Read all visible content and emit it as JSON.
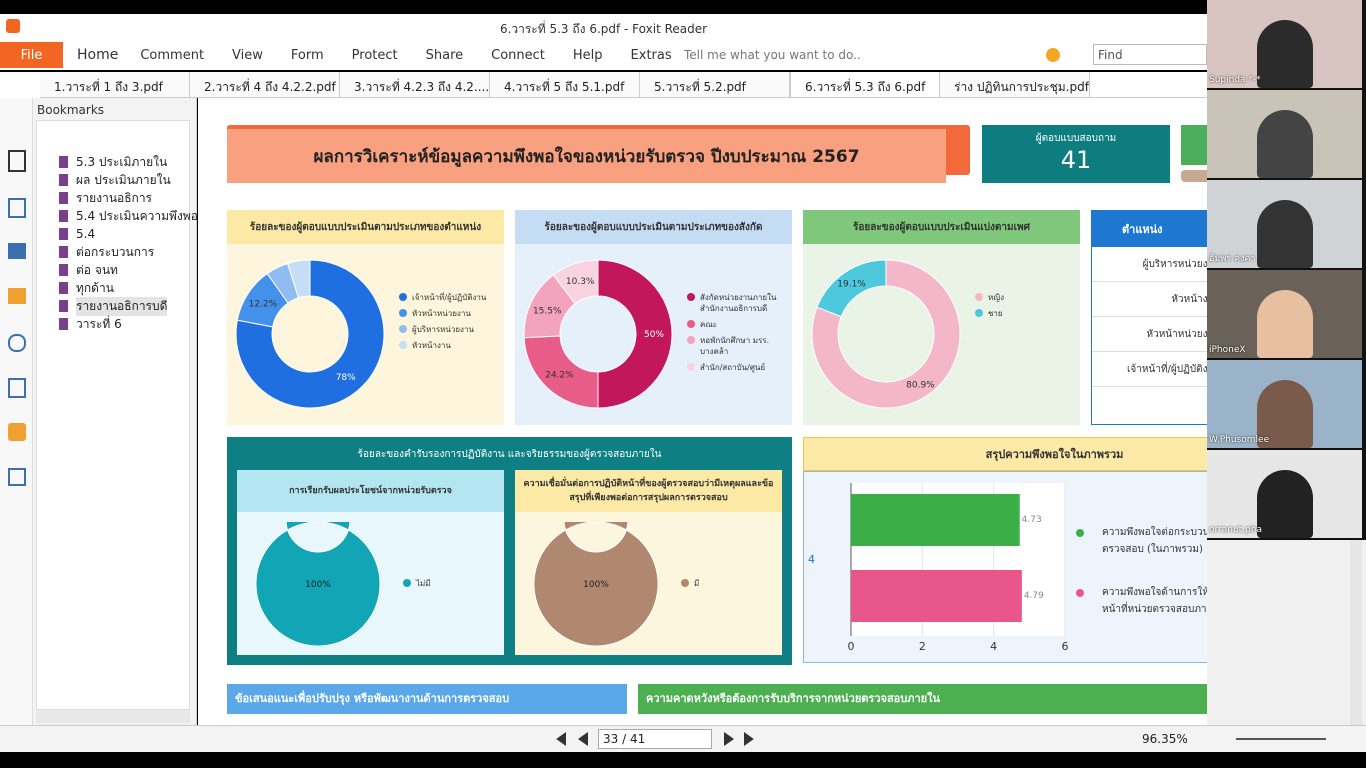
{
  "window": {
    "title": "6.วาระที่ 5.3 ถึง 6.pdf - Foxit Reader"
  },
  "ribbon": {
    "tabs": [
      "File",
      "Home",
      "Comment",
      "View",
      "Form",
      "Protect",
      "Share",
      "Connect",
      "Help",
      "Extras"
    ],
    "tell_me": "Tell me what you want to do..",
    "find": "Find"
  },
  "doc_tabs": [
    "1.วาระที่ 1 ถึง 3.pdf",
    "2.วาระที่ 4 ถึง 4.2.2.pdf",
    "3.วาระที่ 4.2.3 ถึง 4.2....",
    "4.วาระที่ 5 ถึง 5.1.pdf",
    "5.วาระที่ 5.2.pdf",
    "6.วาระที่ 5.3 ถึง 6.pdf",
    "ร่าง ปฏิทินการประชุม.pdf"
  ],
  "bookmarks": {
    "title": "Bookmarks",
    "items": [
      "5.3 ประเมิภายใน",
      "ผล ประเมินภายใน",
      "รายงานอธิการ",
      "5.4 ประเมินความพึงพอ",
      "5.4",
      "ต่อกระบวนการ",
      "ต่อ จนท",
      "ทุกด้าน",
      "รายงานอธิการบดี",
      "วาระที่ 6"
    ]
  },
  "dashboard": {
    "title": "ผลการวิเคราะห์ข้อมูลความพึงพอใจของหน่วยรับตรวจ ปีงบประมาณ 2567",
    "respondents": {
      "label": "ผู้ตอบแบบสอบถาม",
      "value": 41
    },
    "donuts": [
      {
        "title": "ร้อยละของผู้ตอบแบบประเมินตามประเภทของตำแหน่ง",
        "categories": [
          "เจ้าหน้าที่/ผู้ปฏิบัติงาน",
          "หัวหน้าหน่วยงาน",
          "ผู้บริหารหน่วยงาน",
          "หัวหน้างาน"
        ],
        "values": [
          78,
          12.2,
          4.9,
          4.9
        ],
        "value_labels": [
          "78%",
          "12.2%",
          null,
          null
        ],
        "colors": [
          "#1f6fe0",
          "#4391ea",
          "#8fbdf2",
          "#c6ddf8"
        ]
      },
      {
        "title": "ร้อยละของผู้ตอบแบบประเมินตามประเภทของสังกัด",
        "categories": [
          "สังกัดหน่วยงานภายใน สำนักงานอธิการบดี",
          "คณะ",
          "หอพักนักศึกษา มรร. บางคล้า",
          "สำนัก/สถาบัน/ศูนย์"
        ],
        "values": [
          50,
          24.2,
          15.5,
          10.3
        ],
        "value_labels": [
          "50%",
          "24.2%",
          "15.5%",
          "10.3%"
        ],
        "colors": [
          "#c2185b",
          "#e85c8a",
          "#f4a3bf",
          "#f9d3df"
        ]
      },
      {
        "title": "ร้อยละของผู้ตอบแบบประเมินแบ่งตามเพศ",
        "categories": [
          "หญิง",
          "ชาย"
        ],
        "values": [
          80.9,
          19.1
        ],
        "value_labels": [
          "80.9%",
          "19.1%"
        ],
        "colors": [
          "#f4b6c9",
          "#4dc8dc"
        ]
      }
    ],
    "position_table": {
      "header": "ตำแหน่ง",
      "rows": [
        "ผู้บริหารหน่วยงาน",
        "หัวหน้างาน",
        "หัวหน้าหน่วยงาน",
        "เจ้าหน้าที่/ผู้ปฏิบัติงาน"
      ]
    },
    "ethics": {
      "title": "ร้อยละของคำรับรองการปฏิบัติงาน และจริยธรรมของผู้ตรวจสอบภายใน",
      "donuts": [
        {
          "title": "การเรียกรับผลประโยชน์จากหน่วยรับตรวจ",
          "categories": [
            "ไม่มี"
          ],
          "values": [
            100
          ],
          "value_labels": [
            "100%"
          ],
          "colors": [
            "#12a5b5"
          ]
        },
        {
          "title": "ความเชื่อมั่นต่อการปฏิบัติหน้าที่ของผู้ตรวจสอบว่ามีเหตุผลและข้อสรุปที่เพียงพอต่อการสรุปผลการตรวจสอบ",
          "categories": [
            "มี"
          ],
          "values": [
            100
          ],
          "value_labels": [
            "100%"
          ],
          "colors": [
            "#b08870"
          ]
        }
      ]
    },
    "summary": {
      "title": "สรุปความพึงพอใจในภาพรวม",
      "y_label": "4",
      "categories": [
        "ความพึงพอใจต่อกระบวนการปฏิบัติงานตรวจสอบ (ในภาพรวม)",
        "ความพึงพอใจด้านการให้บริการของเจ้าหน้าที่หน่วยตรวจสอบภายใน (ในภาพรวม)"
      ],
      "values": [
        4.73,
        4.79
      ],
      "colors": [
        "#3cae48",
        "#e9568a"
      ],
      "xlim": [
        0,
        6
      ],
      "xticks": [
        0,
        2,
        4,
        6
      ]
    },
    "footer_sections": [
      "ข้อเสนอแนะเพื่อปรับปรุง หรือพัฒนางานด้านการตรวจสอบ",
      "ความคาดหวังหรือต้องการรับบริการจากหน่วยตรวจสอบภายใน"
    ]
  },
  "status_bar": {
    "page": "33 / 41",
    "zoom": "96.35%"
  },
  "participants": [
    "Supinda *-*",
    "",
    "อัมพร คงคา",
    "iPhoneX",
    "W.Phusomlee",
    "orranut.pha"
  ]
}
